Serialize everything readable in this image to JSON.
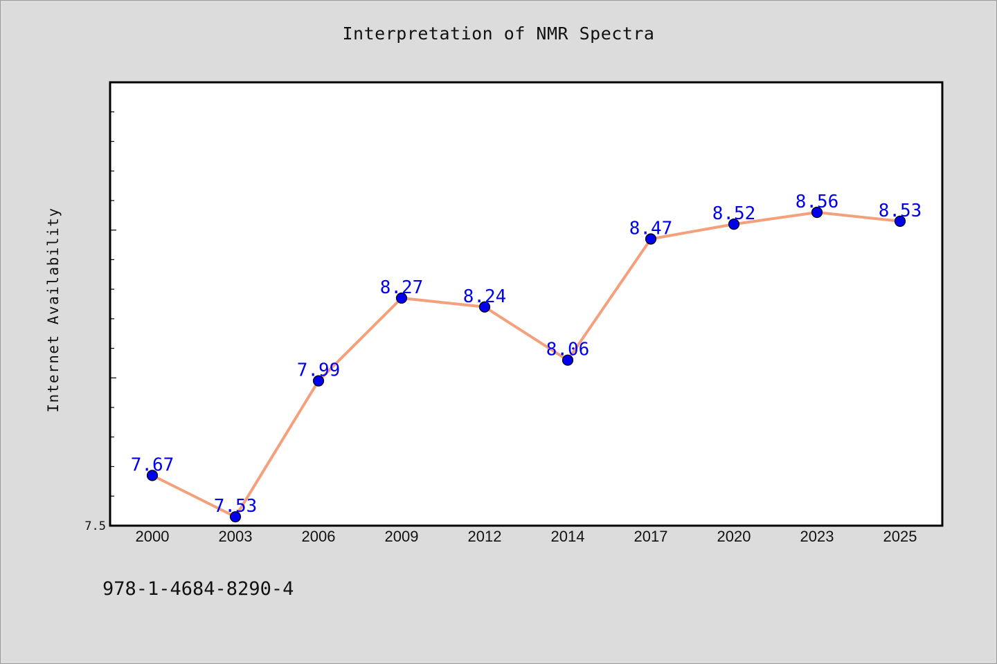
{
  "chart_data": {
    "type": "line",
    "title": "Interpretation of NMR Spectra",
    "xlabel": "",
    "ylabel": "Internet Availability",
    "categories": [
      "2000",
      "2003",
      "2006",
      "2009",
      "2012",
      "2014",
      "2017",
      "2020",
      "2023",
      "2025"
    ],
    "series": [
      {
        "values": [
          7.67,
          7.53,
          7.99,
          8.27,
          8.24,
          8.06,
          8.47,
          8.52,
          8.56,
          8.53
        ]
      }
    ],
    "ylim": [
      7.5,
      9.0
    ],
    "y_tick_labels": [
      "7.5"
    ],
    "grid": false,
    "line_color": "#f4a07c",
    "marker_color": "#0000ee",
    "label_color": "#0000ee"
  },
  "footer": {
    "code": "978-1-4684-8290-4"
  }
}
